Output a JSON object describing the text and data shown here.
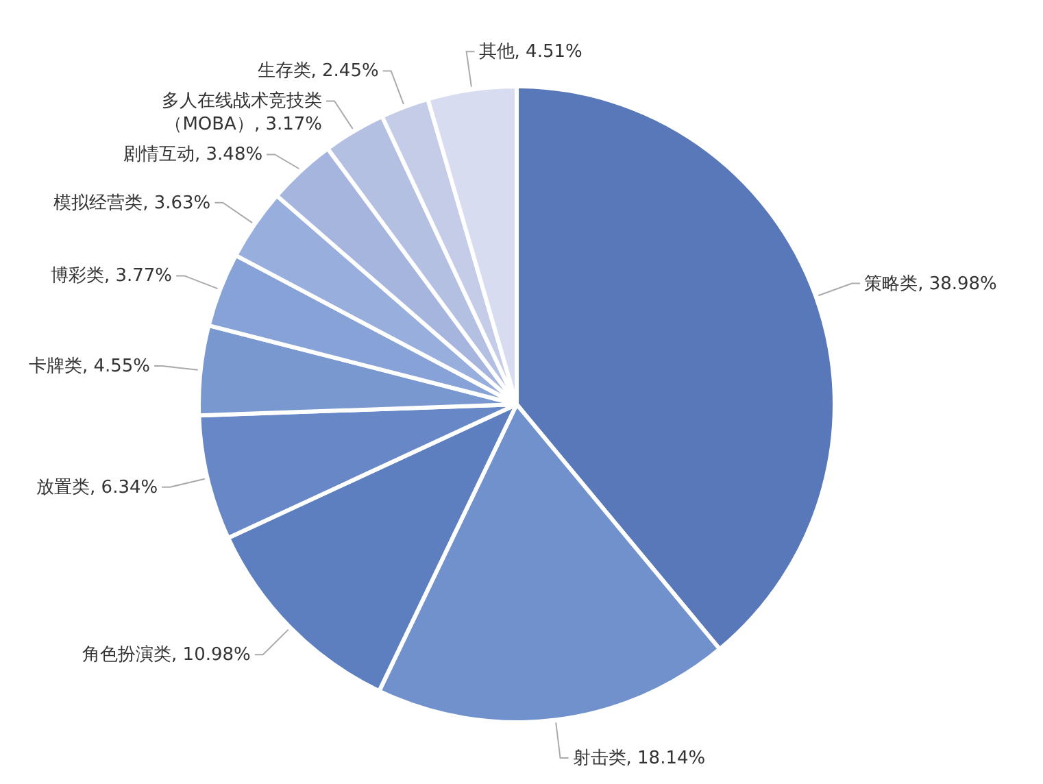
{
  "chart_data": {
    "type": "pie",
    "categories": [
      "策略类",
      "射击类",
      "角色扮演类",
      "放置类",
      "卡牌类",
      "博彩类",
      "模拟经营类",
      "剧情互动",
      "多人在线战术竞技类（MOBA）",
      "生存类",
      "其他"
    ],
    "values": [
      38.98,
      18.14,
      10.98,
      6.34,
      4.55,
      3.77,
      3.63,
      3.48,
      3.17,
      2.45,
      4.51
    ],
    "value_labels": [
      "38.98%",
      "18.14%",
      "10.98%",
      "6.34%",
      "4.55%",
      "3.77%",
      "3.63%",
      "3.48%",
      "3.17%",
      "2.45%",
      "4.51%"
    ],
    "colors": [
      "#5878b9",
      "#7191cc",
      "#5d7fc0",
      "#6787c6",
      "#7a98d0",
      "#87a2d6",
      "#98aedc",
      "#a6b5de",
      "#b4c0e2",
      "#c4cce8",
      "#d7dcf0"
    ]
  }
}
